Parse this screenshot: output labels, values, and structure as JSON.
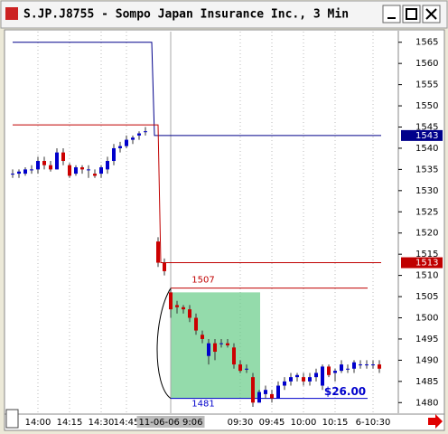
{
  "window_title": "S.JP.J8755 - Sompo Japan Insurance Inc., 3 Min",
  "chart_data": {
    "type": "candlestick",
    "categories": [
      null,
      null,
      null,
      null,
      "14:00",
      null,
      null,
      null,
      null,
      "14:15",
      null,
      null,
      null,
      null,
      "14:30",
      null,
      null,
      null,
      "14:45",
      null,
      null,
      null,
      null,
      null,
      null,
      "11-06-06   9:06",
      null,
      null,
      null,
      null,
      null,
      null,
      null,
      null,
      null,
      null,
      "09:30",
      null,
      null,
      null,
      null,
      "09:45",
      null,
      null,
      null,
      null,
      "10:00",
      null,
      null,
      null,
      null,
      "10:15",
      null,
      null,
      null,
      null,
      null,
      "6-10:30",
      null
    ],
    "open": [
      1534,
      1534,
      1534,
      1535,
      1535,
      1537,
      1536,
      1535,
      1539,
      1536,
      1534,
      1535.5,
      1535,
      1534,
      1534,
      1535,
      1537,
      1540,
      1540.5,
      1542,
      1543,
      1544,
      null,
      1518,
      1513,
      1506,
      1503,
      1502.5,
      1502,
      1500,
      1496,
      1491,
      1494,
      1494,
      1494,
      1493,
      1489,
      1488,
      1486,
      1480,
      1482,
      1482,
      1481,
      1484,
      1485,
      1486,
      1486,
      1485,
      1486,
      1484,
      1488.5,
      1487,
      1487.5,
      1488,
      1488,
      1489,
      1489,
      1489,
      1489
    ],
    "high": [
      1535,
      1535,
      1535.5,
      1536,
      1538,
      1538,
      1537,
      1540,
      1540,
      1536.5,
      1536,
      1536,
      1536,
      1535,
      1536,
      1538,
      1541,
      1541.5,
      1543,
      1543,
      1544,
      1545,
      null,
      1519,
      1514,
      1507,
      1504,
      1503,
      1503,
      1501,
      1497,
      1495,
      1495,
      1495,
      1495,
      1494,
      1490,
      1489,
      1487,
      1483,
      1484,
      1483,
      1485,
      1486,
      1487,
      1487,
      1487,
      1487,
      1488,
      1489,
      1489,
      1488,
      1490,
      1489,
      1490,
      1490,
      1490,
      1490,
      1490
    ],
    "low": [
      1533,
      1533,
      1533.5,
      1534,
      1534,
      1535,
      1534.5,
      1535,
      1536,
      1533,
      1533.5,
      1534,
      1533,
      1533,
      1533,
      1534,
      1536,
      1539,
      1540,
      1541,
      1542,
      1543,
      null,
      1512,
      1510,
      1500,
      1501,
      1501,
      1499,
      1496,
      1494,
      1489,
      1490,
      1493,
      1493,
      1488,
      1487,
      1487,
      1479,
      1480,
      1481,
      1480,
      1481,
      1483,
      1484,
      1485,
      1484,
      1484,
      1485,
      1483,
      1486,
      1485,
      1487,
      1487,
      1487,
      1488,
      1488,
      1488,
      1487
    ],
    "close": [
      1534,
      1534.5,
      1535,
      1535,
      1537,
      1536,
      1535,
      1539,
      1537,
      1533.5,
      1535.5,
      1535,
      1535,
      1533.5,
      1535.5,
      1537,
      1540,
      1540.5,
      1542,
      1542.5,
      1543.5,
      1544,
      null,
      1513,
      1511,
      1502,
      1502.5,
      1502,
      1500,
      1497,
      1495,
      1494,
      1492,
      1494,
      1493.5,
      1489,
      1487.5,
      1488,
      1480,
      1482.5,
      1483,
      1481,
      1484,
      1485,
      1486,
      1486.5,
      1485,
      1486,
      1487,
      1488.5,
      1486.5,
      1487.5,
      1489,
      1488,
      1489.5,
      1489,
      1489,
      1489,
      1488
    ],
    "up_color": "#0000cc",
    "down_color": "#cc0000",
    "ylim": [
      1477.5,
      1567.5
    ],
    "yticks": [
      1480,
      1485,
      1490,
      1495,
      1500,
      1505,
      1510,
      1515,
      1520,
      1525,
      1530,
      1535,
      1540,
      1545,
      1550,
      1555,
      1560,
      1565
    ],
    "reference_lines": [
      {
        "color": "#00008b",
        "levels": [
          1565,
          1543
        ]
      },
      {
        "color": "#c00000",
        "levels": [
          1545.5,
          1513
        ]
      }
    ],
    "levels": [
      {
        "value": 1507,
        "color": "#c00000"
      },
      {
        "value": 1481,
        "color": "#0000cc"
      }
    ],
    "zone": [
      1506,
      1481
    ],
    "zone_color": "#66cc88",
    "profit_label": "$26.00"
  }
}
